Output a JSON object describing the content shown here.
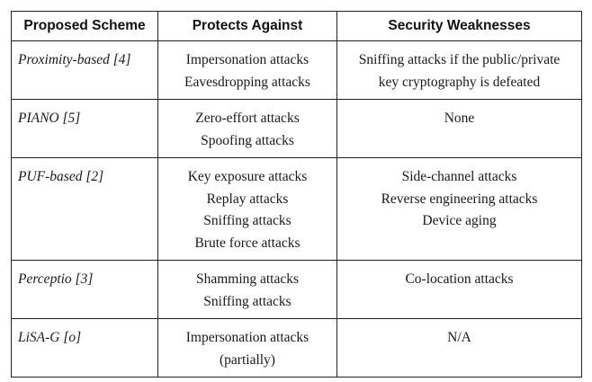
{
  "table": {
    "headers": {
      "scheme": "Proposed Scheme",
      "protects": "Protects Against",
      "weaknesses": "Security Weaknesses"
    },
    "rows": [
      {
        "scheme": "Proximity-based [4]",
        "protects": [
          "Impersonation attacks",
          "Eavesdropping attacks"
        ],
        "weaknesses": [
          "Sniffing attacks if the public/private",
          "key cryptography is defeated"
        ]
      },
      {
        "scheme": "PIANO [5]",
        "protects": [
          "Zero-effort attacks",
          "Spoofing attacks"
        ],
        "weaknesses": [
          "None"
        ]
      },
      {
        "scheme": "PUF-based [2]",
        "protects": [
          "Key exposure attacks",
          "Replay attacks",
          "Sniffing attacks",
          "Brute force attacks"
        ],
        "weaknesses": [
          "Side-channel attacks",
          "Reverse engineering attacks",
          "Device aging"
        ]
      },
      {
        "scheme": "Perceptio [3]",
        "protects": [
          "Shamming attacks",
          "Sniffing attacks"
        ],
        "weaknesses": [
          "Co-location attacks"
        ]
      },
      {
        "scheme": "LiSA-G [o]",
        "protects": [
          "Impersonation attacks",
          "(partially)"
        ],
        "weaknesses": [
          "N/A"
        ]
      }
    ]
  }
}
